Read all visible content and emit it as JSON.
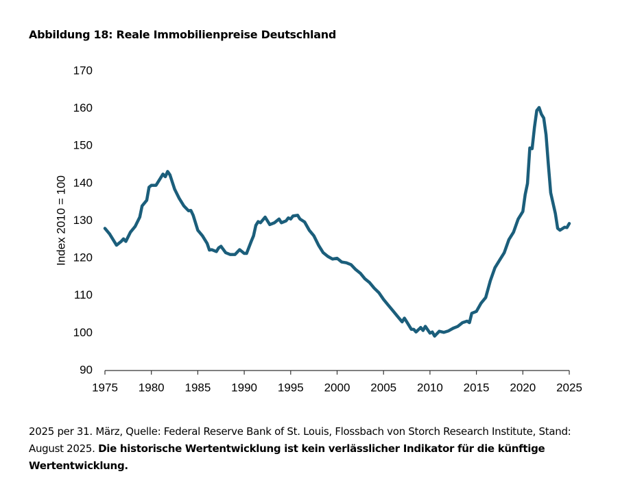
{
  "chart_data": {
    "type": "line",
    "title": "Abbildung 18: Reale Immobilienpreise Deutschland",
    "y_label": "Index 2010 = 100",
    "footnote": "2025 per 31. März, Quelle: Federal Reserve Bank of St. Louis, Flossbach von Storch Research Institute, Stand: August 2025.",
    "footnote_bold": "Die historische Wertentwicklung ist kein verlässlicher Indikator für die künftige Wertentwicklung.",
    "color": "#1b5e7b",
    "grid": false,
    "xlim": [
      1975,
      2025
    ],
    "xticks": [
      1975,
      1980,
      1985,
      1990,
      1995,
      2000,
      2005,
      2010,
      2015,
      2020,
      2025
    ],
    "ylim": [
      90,
      170
    ],
    "yticks": [
      90,
      100,
      110,
      120,
      130,
      140,
      150,
      160,
      170
    ],
    "x": [
      1975,
      1975.5,
      1976,
      1976.25,
      1976.75,
      1977,
      1977.25,
      1977.75,
      1978.25,
      1978.75,
      1979,
      1979.5,
      1979.75,
      1980,
      1980.5,
      1981,
      1981.25,
      1981.5,
      1981.75,
      1982,
      1982.5,
      1983,
      1983.5,
      1984,
      1984.25,
      1984.5,
      1985,
      1985.5,
      1986,
      1986.25,
      1986.5,
      1987,
      1987.25,
      1987.5,
      1988,
      1988.5,
      1989,
      1989.5,
      1990,
      1990.25,
      1990.75,
      1991,
      1991.25,
      1991.5,
      1991.75,
      1992.25,
      1992.5,
      1992.75,
      1993.25,
      1993.75,
      1994,
      1994.5,
      1994.75,
      1995,
      1995.25,
      1995.75,
      1996,
      1996.5,
      1997,
      1997.5,
      1998,
      1998.5,
      1999,
      1999.5,
      2000,
      2000.5,
      2001,
      2001.5,
      2002,
      2002.5,
      2003,
      2003.5,
      2004,
      2004.5,
      2005,
      2005.5,
      2006,
      2006.5,
      2007,
      2007.25,
      2007.5,
      2008,
      2008.25,
      2008.5,
      2009,
      2009.25,
      2009.5,
      2010,
      2010.25,
      2010.5,
      2011,
      2011.5,
      2012,
      2012.5,
      2013,
      2013.5,
      2014,
      2014.25,
      2014.5,
      2015,
      2015.5,
      2016,
      2016.5,
      2017,
      2017.5,
      2018,
      2018.5,
      2019,
      2019.5,
      2020,
      2020.25,
      2020.5,
      2020.75,
      2021,
      2021.25,
      2021.5,
      2021.75,
      2022,
      2022.25,
      2022.5,
      2022.75,
      2023,
      2023.5,
      2023.75,
      2024,
      2024.5,
      2024.75,
      2025
    ],
    "values": [
      128,
      126.5,
      124.5,
      123.5,
      124.5,
      125.2,
      124.5,
      127,
      128.5,
      131,
      134,
      135.5,
      139,
      139.5,
      139.5,
      141.5,
      142.5,
      141.8,
      143.2,
      142.3,
      138.5,
      136,
      134,
      132.7,
      132.8,
      131.5,
      127.5,
      126,
      124,
      122.2,
      122.3,
      121.8,
      122.8,
      123.2,
      121.5,
      121,
      121,
      122.3,
      121.3,
      121.3,
      124.5,
      126,
      128.8,
      129.8,
      129.5,
      131,
      130,
      129,
      129.5,
      130.5,
      129.5,
      130,
      130.8,
      130.5,
      131.3,
      131.5,
      130.5,
      129.7,
      127.5,
      126,
      123.5,
      121.5,
      120.5,
      119.8,
      120,
      119,
      118.8,
      118.3,
      117,
      116,
      114.5,
      113.5,
      112,
      110.8,
      109,
      107.5,
      106,
      104.5,
      103,
      104,
      103,
      101,
      101,
      100.3,
      101.5,
      100.7,
      101.8,
      100,
      100.3,
      99.2,
      100.5,
      100.2,
      100.6,
      101.3,
      101.8,
      102.8,
      103.2,
      102.8,
      105.3,
      105.8,
      108,
      109.5,
      114,
      117.5,
      119.5,
      121.5,
      125,
      127,
      130.5,
      132.5,
      137,
      140,
      149.5,
      149.3,
      155,
      159.5,
      160.3,
      158.5,
      157.5,
      153,
      145,
      137.5,
      132,
      128,
      127.5,
      128.3,
      128.2,
      129.3
    ]
  }
}
